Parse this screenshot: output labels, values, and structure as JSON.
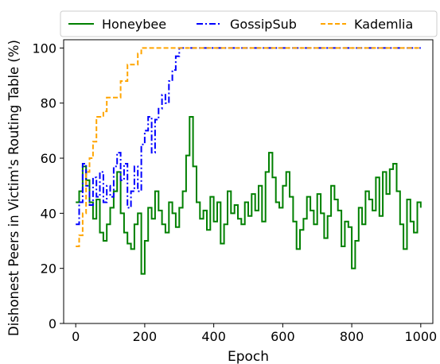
{
  "chart_data": {
    "type": "line",
    "xlabel": "Epoch",
    "ylabel": "Dishonest Peers in Victim's Routing Table (%)",
    "xlim": [
      -35,
      1035
    ],
    "ylim": [
      0,
      103
    ],
    "xticks": [
      0,
      200,
      400,
      600,
      800,
      1000
    ],
    "yticks": [
      0,
      20,
      40,
      60,
      80,
      100
    ],
    "grid": false,
    "legend_position": "top",
    "series": [
      {
        "name": "Honeybee",
        "color": "#008000",
        "style": "solid",
        "x": [
          0,
          10,
          20,
          30,
          40,
          50,
          60,
          70,
          80,
          90,
          100,
          110,
          120,
          130,
          140,
          150,
          160,
          170,
          180,
          190,
          200,
          210,
          220,
          230,
          240,
          250,
          260,
          270,
          280,
          290,
          300,
          310,
          320,
          330,
          340,
          350,
          360,
          370,
          380,
          390,
          400,
          410,
          420,
          430,
          440,
          450,
          460,
          470,
          480,
          490,
          500,
          510,
          520,
          530,
          540,
          550,
          560,
          570,
          580,
          590,
          600,
          610,
          620,
          630,
          640,
          650,
          660,
          670,
          680,
          690,
          700,
          710,
          720,
          730,
          740,
          750,
          760,
          770,
          780,
          790,
          800,
          810,
          820,
          830,
          840,
          850,
          860,
          870,
          880,
          890,
          900,
          910,
          920,
          930,
          940,
          950,
          960,
          970,
          980,
          990,
          1000
        ],
        "y": [
          44,
          48,
          57,
          52,
          44,
          38,
          45,
          33,
          30,
          36,
          42,
          48,
          55,
          40,
          33,
          29,
          27,
          36,
          40,
          18,
          30,
          42,
          38,
          48,
          41,
          36,
          33,
          44,
          40,
          35,
          42,
          48,
          61,
          75,
          57,
          44,
          38,
          41,
          34,
          46,
          37,
          44,
          29,
          36,
          48,
          40,
          43,
          38,
          36,
          44,
          39,
          47,
          41,
          50,
          37,
          55,
          62,
          53,
          44,
          42,
          50,
          55,
          46,
          37,
          27,
          34,
          38,
          46,
          41,
          36,
          47,
          40,
          31,
          39,
          50,
          45,
          41,
          28,
          37,
          35,
          20,
          30,
          42,
          36,
          48,
          45,
          41,
          53,
          39,
          55,
          47,
          56,
          58,
          48,
          36,
          27,
          45,
          37,
          33,
          44,
          42
        ]
      },
      {
        "name": "GossipSub",
        "color": "#0000ff",
        "style": "dashdot",
        "x": [
          0,
          10,
          20,
          30,
          40,
          50,
          60,
          70,
          80,
          90,
          100,
          110,
          120,
          130,
          140,
          150,
          160,
          170,
          180,
          190,
          200,
          210,
          220,
          230,
          240,
          250,
          260,
          270,
          280,
          290,
          300,
          400,
          500,
          600,
          700,
          800,
          900,
          1000
        ],
        "y": [
          36,
          44,
          58,
          50,
          43,
          53,
          46,
          55,
          44,
          50,
          46,
          57,
          62,
          52,
          58,
          42,
          48,
          57,
          48,
          65,
          70,
          75,
          62,
          74,
          78,
          83,
          80,
          88,
          92,
          97,
          100,
          100,
          100,
          100,
          100,
          100,
          100,
          100
        ]
      },
      {
        "name": "Kademlia",
        "color": "#ffa500",
        "style": "dashed",
        "x": [
          0,
          10,
          20,
          30,
          40,
          50,
          60,
          70,
          80,
          90,
          100,
          110,
          120,
          130,
          140,
          150,
          160,
          170,
          180,
          190,
          200,
          300,
          400,
          500,
          600,
          700,
          800,
          900,
          1000
        ],
        "y": [
          28,
          32,
          40,
          55,
          60,
          66,
          75,
          75,
          77,
          82,
          82,
          82,
          82,
          88,
          88,
          94,
          94,
          94,
          98,
          100,
          100,
          100,
          100,
          100,
          100,
          100,
          100,
          100,
          100
        ]
      }
    ]
  }
}
